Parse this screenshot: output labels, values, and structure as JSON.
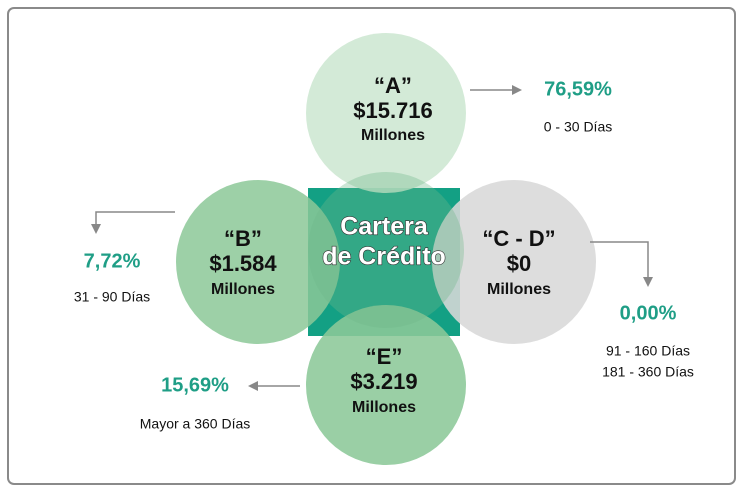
{
  "center": {
    "lines": [
      "Cartera",
      "de Crédito"
    ]
  },
  "segments": [
    {
      "label": "“A”",
      "amount": "$15.716",
      "unit": "Millones",
      "percent": "76,59%",
      "ranges": [
        "0 - 30 Días"
      ]
    },
    {
      "label": "“B”",
      "amount": "$1.584",
      "unit": "Millones",
      "percent": "7,72%",
      "ranges": [
        "31 - 90 Días"
      ]
    },
    {
      "label": "“C - D”",
      "amount": "$0",
      "unit": "Millones",
      "percent": "0,00%",
      "ranges": [
        "91 - 160 Días",
        "181 - 360 Días"
      ]
    },
    {
      "label": "“E”",
      "amount": "$3.219",
      "unit": "Millones",
      "percent": "15,69%",
      "ranges": [
        "Mayor a 360 Días"
      ]
    }
  ]
}
